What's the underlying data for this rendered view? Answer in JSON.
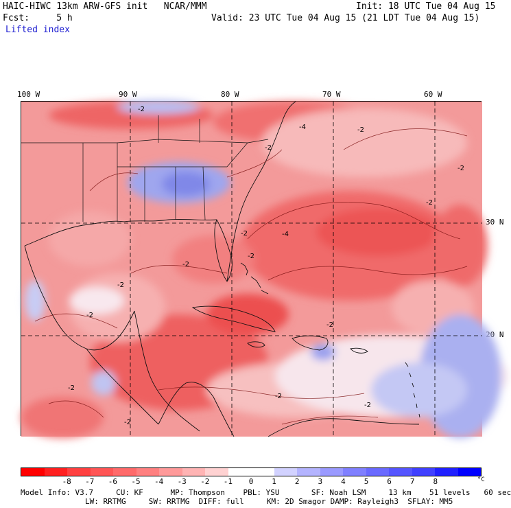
{
  "header": {
    "title": "HAIC-HIWC 13km ARW-GFS init   NCAR/MMM",
    "fcst": "Fcst:     5 h",
    "field": "Lifted index",
    "init": "Init: 18 UTC Tue 04 Aug 15",
    "valid": "Valid: 23 UTC Tue 04 Aug 15 (21 LDT Tue 04 Aug 15)"
  },
  "map": {
    "lon_labels": [
      "100 W",
      "90 W",
      "80 W",
      "70 W",
      "60 W"
    ],
    "lat_labels": [
      "30 N",
      "20 N"
    ],
    "contour_labels": [
      "-2",
      "-2",
      "-2",
      "-2",
      "-4",
      "-2",
      "-2",
      "-2",
      "-4",
      "-2",
      "-2",
      "-2",
      "-2",
      "-2",
      "-2",
      "-2",
      "-2"
    ]
  },
  "colorbar": {
    "unit": "°C",
    "ticks": [
      "-8",
      "-7",
      "-6",
      "-5",
      "-4",
      "-3",
      "-2",
      "-1",
      "0",
      "1",
      "2",
      "3",
      "4",
      "5",
      "6",
      "7",
      "8"
    ],
    "colors": [
      "#ff0000",
      "#ff2020",
      "#ff4040",
      "#ff5555",
      "#ff6a6a",
      "#ff8080",
      "#ff9a9a",
      "#ffb4b4",
      "#ffd2d2",
      "#ffffff",
      "#ffffff",
      "#d2d2ff",
      "#b4b4ff",
      "#9a9aff",
      "#8080ff",
      "#6a6aff",
      "#5555ff",
      "#4040ff",
      "#2020ff",
      "#0000ff"
    ]
  },
  "model_info": {
    "line1": "Model Info: V3.7     CU: KF      MP: Thompson    PBL: YSU       SF: Noah LSM     13 km    51 levels   60 sec",
    "line2": "LW: RRTMG     SW: RRTMG  DIFF: full     KM: 2D Smagor DAMP: Rayleigh3  SFLAY: MM5"
  }
}
